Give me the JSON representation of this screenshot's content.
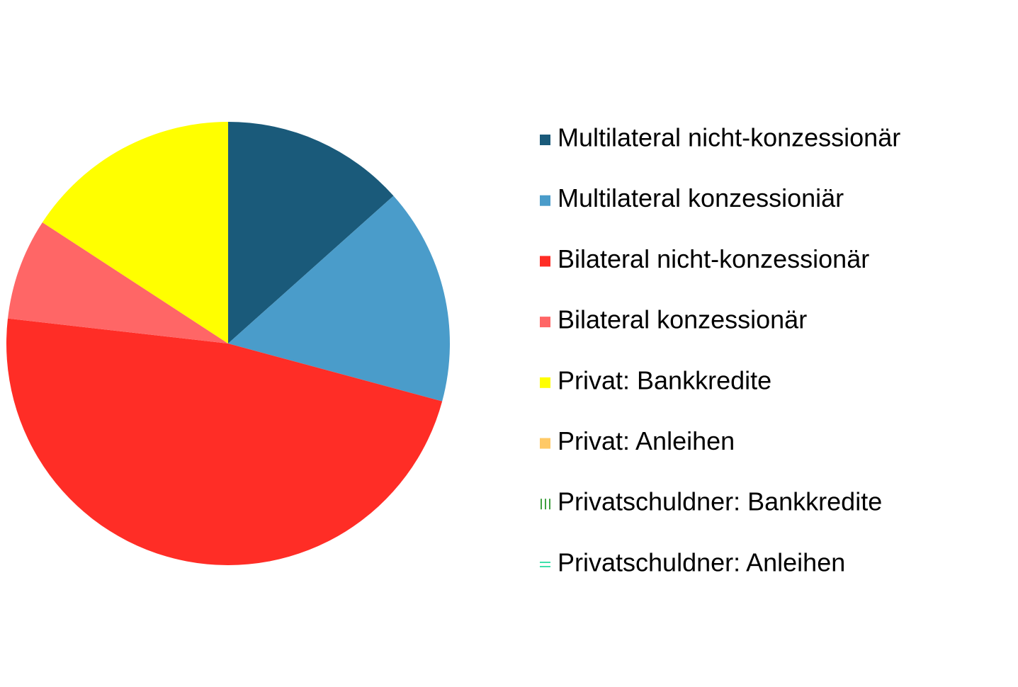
{
  "chart_data": {
    "type": "pie",
    "categories": [
      "Multilateral nicht-konzessionär",
      "Multilateral konzessioniär",
      "Bilateral nicht-konzessionär",
      "Bilateral konzessionär",
      "Privat: Bankkredite",
      "Privat: Anleihen",
      "Privatschuldner: Bankkredite",
      "Privatschuldner: Anleihen"
    ],
    "values": [
      13.4,
      15.8,
      47.6,
      7.4,
      15.8,
      0,
      0,
      0
    ],
    "colors": [
      "#1a5a7a",
      "#4a9cca",
      "#ff2d26",
      "#ff6666",
      "#ffff00",
      "#ffc966",
      "#008000",
      "#00d68f"
    ],
    "patterns": [
      "solid",
      "solid",
      "solid",
      "solid",
      "solid",
      "solid",
      "vertical-lines",
      "horizontal-lines"
    ],
    "legend": "right"
  }
}
